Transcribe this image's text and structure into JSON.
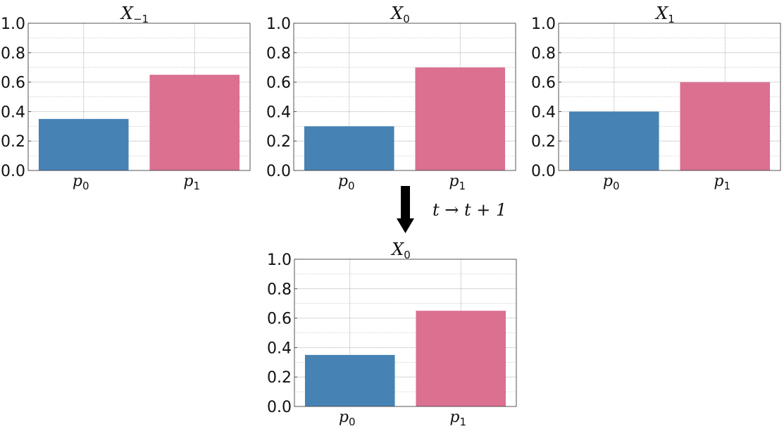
{
  "colors": {
    "p0": "#4682b4",
    "p1": "#db7090",
    "grid": "#bbbbbb",
    "axis": "#444444",
    "arrow": "#000000"
  },
  "transition_label": "t → t + 1",
  "transition_icon": "down-arrow-icon",
  "chart_data": [
    {
      "type": "bar",
      "title": "X",
      "title_subscript": "−1",
      "categories": [
        "p",
        "p"
      ],
      "category_subscripts": [
        "0",
        "1"
      ],
      "values": [
        0.35,
        0.65
      ],
      "colors": [
        "#4682b4",
        "#db7090"
      ],
      "ylim": [
        0,
        1.0
      ],
      "yticks": [
        "0.0",
        "0.2",
        "0.4",
        "0.6",
        "0.8",
        "1.0"
      ],
      "grid": true
    },
    {
      "type": "bar",
      "title": "X",
      "title_subscript": "0",
      "categories": [
        "p",
        "p"
      ],
      "category_subscripts": [
        "0",
        "1"
      ],
      "values": [
        0.3,
        0.7
      ],
      "colors": [
        "#4682b4",
        "#db7090"
      ],
      "ylim": [
        0,
        1.0
      ],
      "yticks": [
        "0.0",
        "0.2",
        "0.4",
        "0.6",
        "0.8",
        "1.0"
      ],
      "grid": true
    },
    {
      "type": "bar",
      "title": "X",
      "title_subscript": "1",
      "categories": [
        "p",
        "p"
      ],
      "category_subscripts": [
        "0",
        "1"
      ],
      "values": [
        0.4,
        0.6
      ],
      "colors": [
        "#4682b4",
        "#db7090"
      ],
      "ylim": [
        0,
        1.0
      ],
      "yticks": [
        "0.0",
        "0.2",
        "0.4",
        "0.6",
        "0.8",
        "1.0"
      ],
      "grid": true
    },
    {
      "type": "bar",
      "title": "X",
      "title_subscript": "0",
      "categories": [
        "p",
        "p"
      ],
      "category_subscripts": [
        "0",
        "1"
      ],
      "values": [
        0.35,
        0.65
      ],
      "colors": [
        "#4682b4",
        "#db7090"
      ],
      "ylim": [
        0,
        1.0
      ],
      "yticks": [
        "0.0",
        "0.2",
        "0.4",
        "0.6",
        "0.8",
        "1.0"
      ],
      "grid": true
    }
  ]
}
